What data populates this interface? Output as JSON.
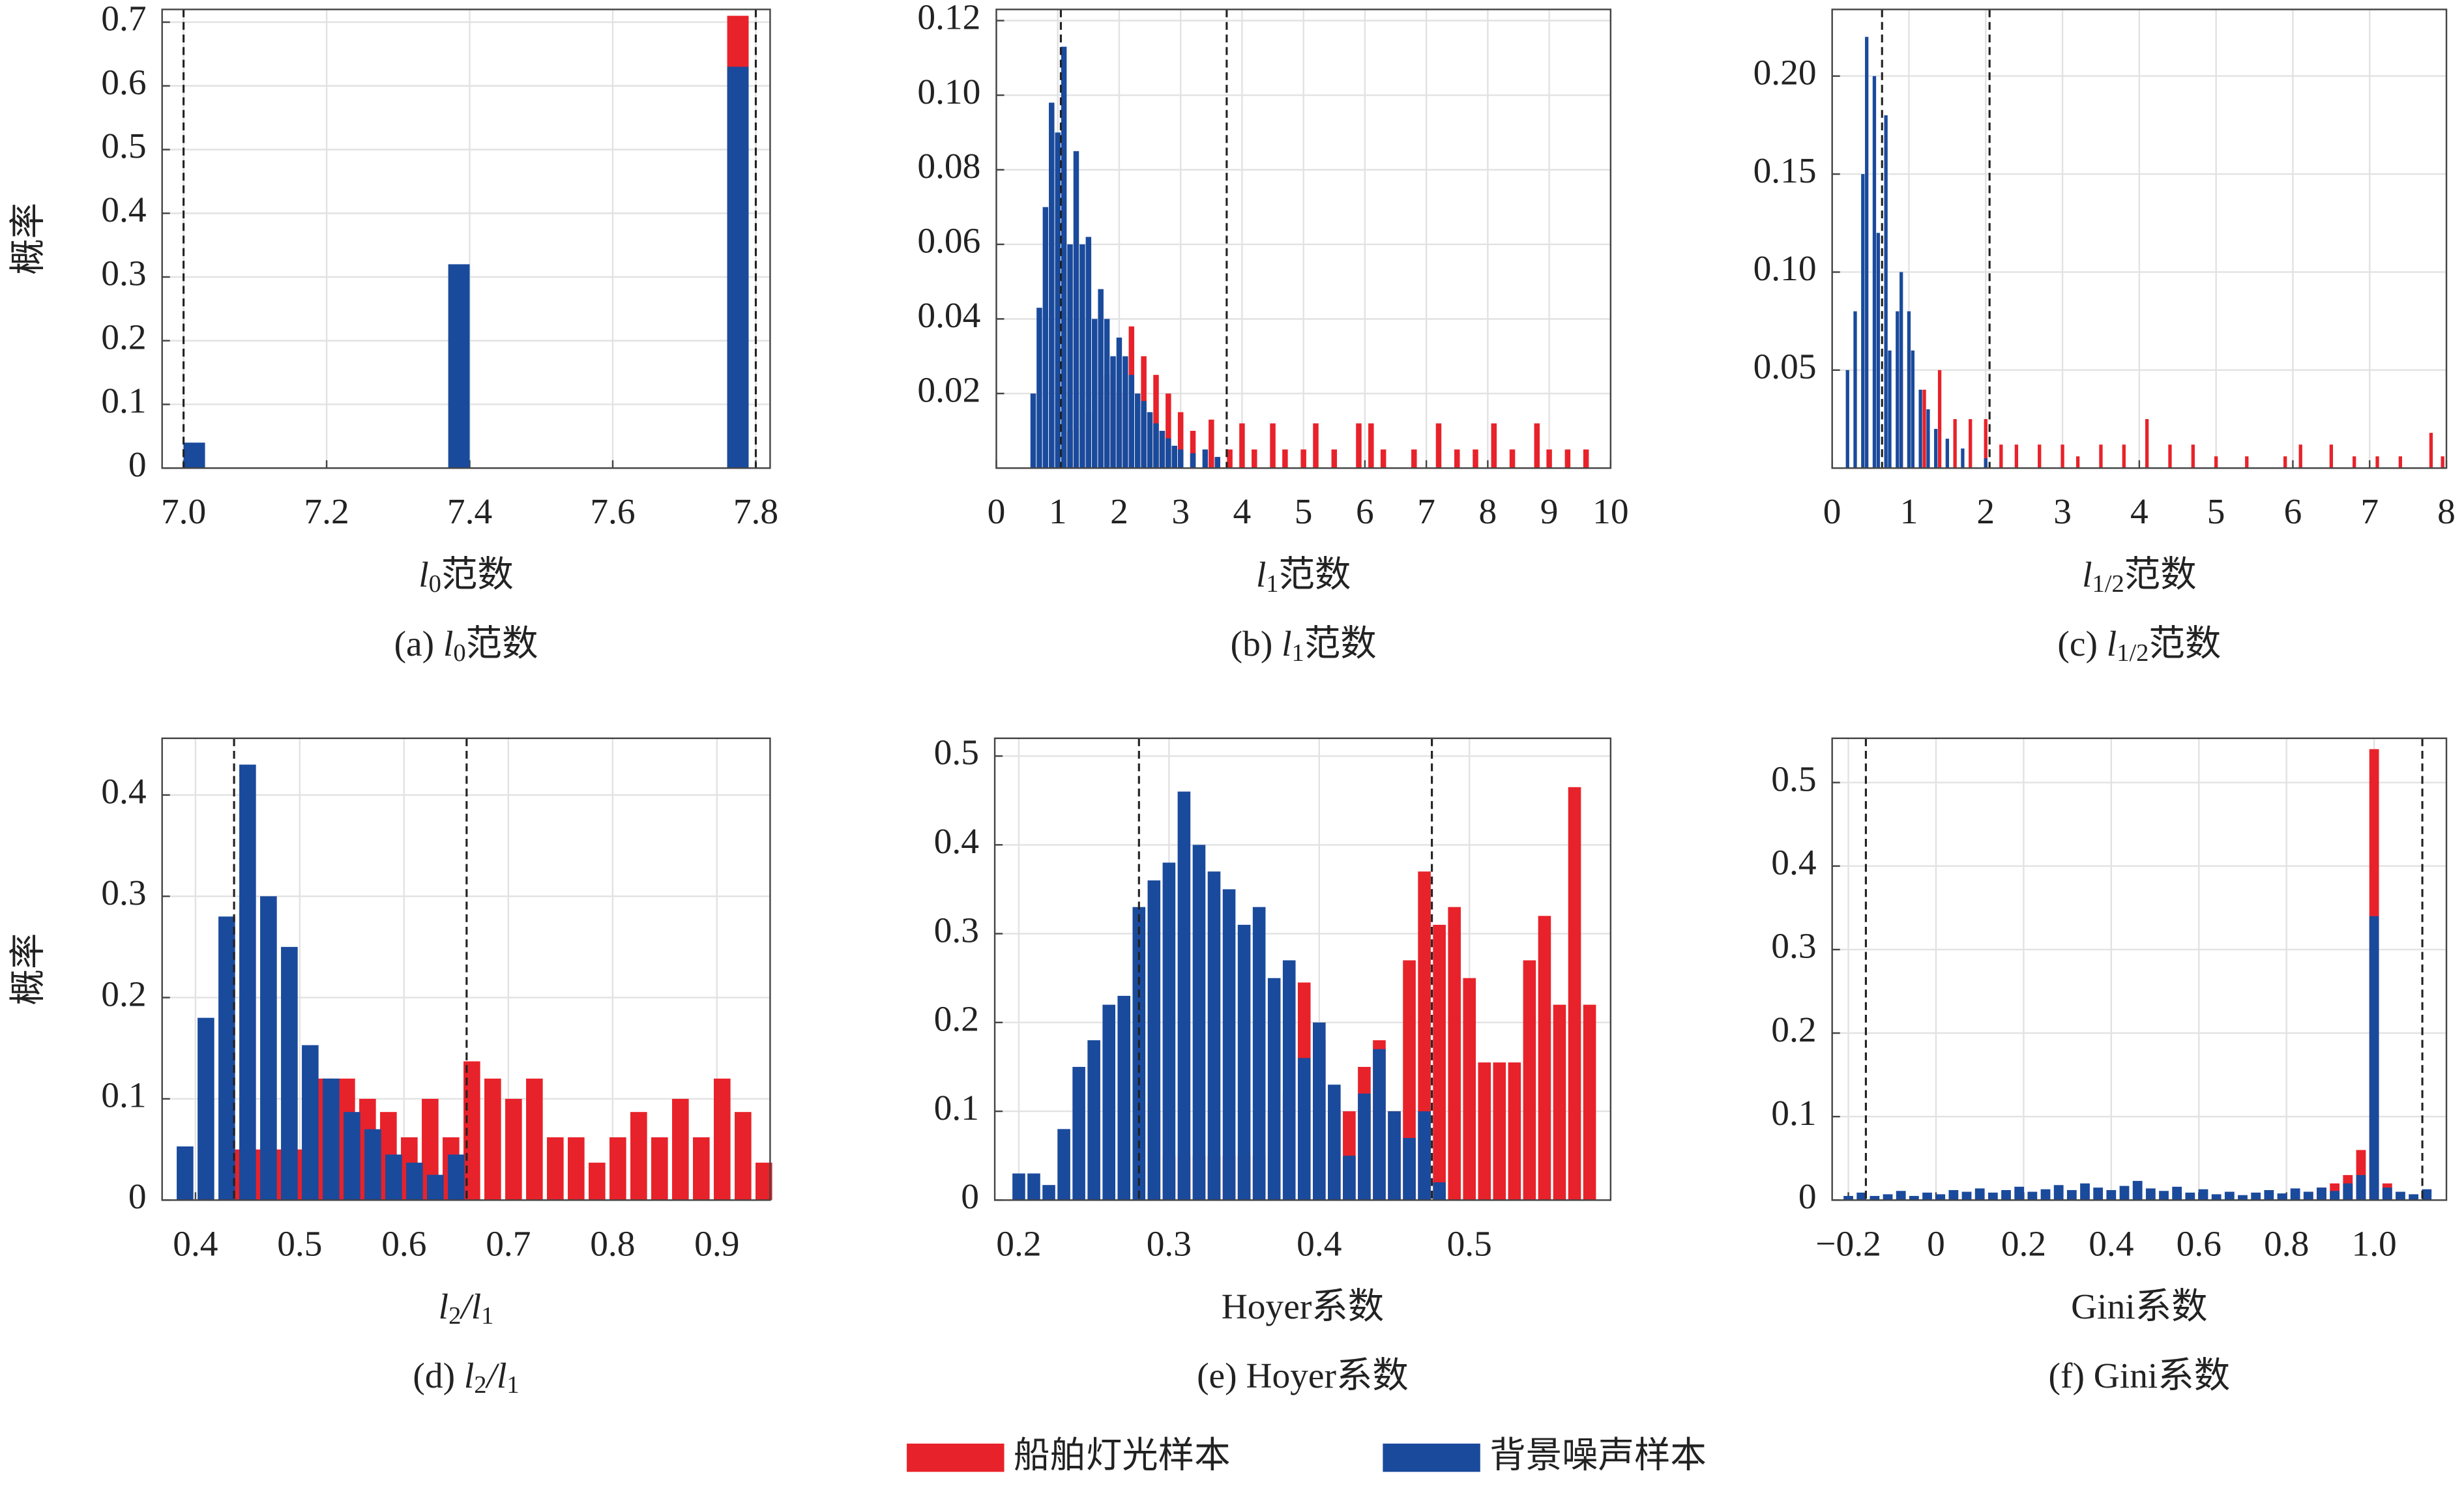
{
  "chart_data": [
    {
      "type": "bar",
      "xlabel": [
        {
          "text": "l"
        },
        {
          "text": "0",
          "sub": true
        },
        {
          "text": "范数"
        }
      ],
      "caption": [
        {
          "text": "(a) "
        },
        {
          "text": "l"
        },
        {
          "text": "0",
          "sub": true
        },
        {
          "text": "范数"
        }
      ],
      "ylabel": "概率",
      "xlim": [
        6.97,
        7.82
      ],
      "ylim": [
        0,
        0.72
      ],
      "xticks": [
        {
          "value": 7.0,
          "label": "7.0"
        },
        7.2,
        7.4,
        7.6,
        7.8
      ],
      "yticks": [
        0,
        0.1,
        0.2,
        0.3,
        0.4,
        0.5,
        0.6,
        0.7
      ],
      "vlines": [
        7.0,
        7.8
      ],
      "bar_width": 0.03,
      "grid": true,
      "series": [
        {
          "color": "#e8222a",
          "x": [
            7.775
          ],
          "values": [
            0.71
          ]
        },
        {
          "color": "#1a4a9c",
          "x": [
            7.015,
            7.385,
            7.775
          ],
          "values": [
            0.04,
            0.32,
            0.63
          ]
        }
      ]
    },
    {
      "type": "bar",
      "xlabel": [
        {
          "text": "l"
        },
        {
          "text": "1",
          "sub": true
        },
        {
          "text": "范数"
        }
      ],
      "caption": [
        {
          "text": "(b) "
        },
        {
          "text": "l"
        },
        {
          "text": "1",
          "sub": true
        },
        {
          "text": "范数"
        }
      ],
      "xlim": [
        0,
        10
      ],
      "ylim": [
        0,
        0.123
      ],
      "xticks": [
        0,
        1,
        2,
        3,
        4,
        5,
        6,
        7,
        8,
        9,
        10
      ],
      "yticks": [
        0.02,
        0.04,
        0.06,
        0.08,
        {
          "value": 0.1,
          "label": "0.10"
        },
        0.12
      ],
      "vlines": [
        1.05,
        3.75
      ],
      "bar_width": 0.09,
      "grid": true,
      "series": [
        {
          "color": "#e8222a",
          "x": [
            1.2,
            1.5,
            1.8,
            2.0,
            2.2,
            2.4,
            2.6,
            2.8,
            3.0,
            3.2,
            3.5,
            3.8,
            4.0,
            4.2,
            4.5,
            4.7,
            5.0,
            5.2,
            5.5,
            5.9,
            6.1,
            6.3,
            6.8,
            7.2,
            7.5,
            7.8,
            8.1,
            8.4,
            8.8,
            9.0,
            9.3,
            9.6
          ],
          "values": [
            0.01,
            0.015,
            0.025,
            0.02,
            0.038,
            0.03,
            0.025,
            0.02,
            0.015,
            0.01,
            0.013,
            0.005,
            0.012,
            0.005,
            0.012,
            0.005,
            0.005,
            0.012,
            0.005,
            0.012,
            0.012,
            0.005,
            0.005,
            0.012,
            0.005,
            0.005,
            0.012,
            0.005,
            0.012,
            0.005,
            0.005,
            0.005
          ]
        },
        {
          "color": "#1a4a9c",
          "x": [
            0.6,
            0.7,
            0.8,
            0.9,
            1.0,
            1.1,
            1.2,
            1.3,
            1.4,
            1.5,
            1.6,
            1.7,
            1.8,
            1.9,
            2.0,
            2.1,
            2.2,
            2.3,
            2.4,
            2.5,
            2.6,
            2.7,
            2.8,
            2.9,
            3.0,
            3.2,
            3.4,
            3.6
          ],
          "values": [
            0.02,
            0.043,
            0.07,
            0.098,
            0.09,
            0.113,
            0.06,
            0.085,
            0.06,
            0.062,
            0.04,
            0.048,
            0.04,
            0.03,
            0.035,
            0.03,
            0.025,
            0.02,
            0.018,
            0.015,
            0.012,
            0.01,
            0.008,
            0.006,
            0.005,
            0.004,
            0.005,
            0.003
          ]
        }
      ]
    },
    {
      "type": "bar",
      "xlabel": [
        {
          "text": "l"
        },
        {
          "text": "1/2",
          "sub": true
        },
        {
          "text": "范数"
        }
      ],
      "caption": [
        {
          "text": "(c) "
        },
        {
          "text": "l"
        },
        {
          "text": "1/2",
          "sub": true
        },
        {
          "text": "范数"
        }
      ],
      "xlim": [
        0,
        8
      ],
      "ylim": [
        0,
        0.234
      ],
      "xticks": [
        0,
        1,
        2,
        3,
        4,
        5,
        6,
        7,
        8
      ],
      "yticks": [
        0.05,
        {
          "value": 0.1,
          "label": "0.10"
        },
        0.15,
        {
          "value": 0.2,
          "label": "0.20"
        }
      ],
      "vlines": [
        0.65,
        2.05
      ],
      "bar_width": 0.045,
      "grid": true,
      "series": [
        {
          "color": "#e8222a",
          "x": [
            0.9,
            1.2,
            1.4,
            1.6,
            1.8,
            2.0,
            2.2,
            2.4,
            2.7,
            3.0,
            3.2,
            3.5,
            3.8,
            4.1,
            4.4,
            4.7,
            5.0,
            5.4,
            5.9,
            6.1,
            6.5,
            6.8,
            7.1,
            7.4,
            7.8,
            7.95
          ],
          "values": [
            0.05,
            0.04,
            0.05,
            0.025,
            0.025,
            0.025,
            0.012,
            0.012,
            0.012,
            0.012,
            0.006,
            0.012,
            0.012,
            0.025,
            0.012,
            0.012,
            0.006,
            0.006,
            0.006,
            0.012,
            0.012,
            0.006,
            0.006,
            0.006,
            0.018,
            0.006
          ]
        },
        {
          "color": "#1a4a9c",
          "x": [
            0.2,
            0.3,
            0.4,
            0.45,
            0.55,
            0.6,
            0.7,
            0.75,
            0.85,
            0.9,
            1.0,
            1.05,
            1.15,
            1.25,
            1.35,
            1.5,
            1.7,
            2.0
          ],
          "values": [
            0.05,
            0.08,
            0.15,
            0.22,
            0.2,
            0.12,
            0.18,
            0.06,
            0.08,
            0.1,
            0.08,
            0.06,
            0.04,
            0.03,
            0.02,
            0.015,
            0.01,
            0.005
          ]
        }
      ]
    },
    {
      "type": "bar",
      "xlabel": [
        {
          "text": "l"
        },
        {
          "text": "2",
          "sub": true
        },
        {
          "text": "/l"
        },
        {
          "text": "1",
          "sub": true
        }
      ],
      "caption": [
        {
          "text": "(d) "
        },
        {
          "text": "l"
        },
        {
          "text": "2",
          "sub": true
        },
        {
          "text": "/l"
        },
        {
          "text": "1",
          "sub": true
        }
      ],
      "ylabel": "概率",
      "xlim": [
        0.368,
        0.951
      ],
      "ylim": [
        0,
        0.456
      ],
      "xticks": [
        0.4,
        0.5,
        0.6,
        0.7,
        0.8,
        0.9
      ],
      "yticks": [
        0,
        0.1,
        0.2,
        0.3,
        0.4
      ],
      "vlines": [
        0.437,
        0.66
      ],
      "bar_width": 0.016,
      "grid": true,
      "series": [
        {
          "color": "#e8222a",
          "x": [
            0.445,
            0.465,
            0.485,
            0.505,
            0.525,
            0.545,
            0.565,
            0.585,
            0.605,
            0.625,
            0.645,
            0.665,
            0.685,
            0.705,
            0.725,
            0.745,
            0.765,
            0.785,
            0.805,
            0.825,
            0.845,
            0.865,
            0.885,
            0.905,
            0.925,
            0.945
          ],
          "values": [
            0.05,
            0.05,
            0.05,
            0.05,
            0.12,
            0.12,
            0.1,
            0.087,
            0.062,
            0.1,
            0.062,
            0.137,
            0.12,
            0.1,
            0.12,
            0.062,
            0.062,
            0.037,
            0.062,
            0.087,
            0.062,
            0.1,
            0.062,
            0.12,
            0.087,
            0.037
          ]
        },
        {
          "color": "#1a4a9c",
          "x": [
            0.39,
            0.41,
            0.43,
            0.45,
            0.47,
            0.49,
            0.51,
            0.53,
            0.55,
            0.57,
            0.59,
            0.61,
            0.63,
            0.65
          ],
          "values": [
            0.053,
            0.18,
            0.28,
            0.43,
            0.3,
            0.25,
            0.153,
            0.12,
            0.087,
            0.07,
            0.045,
            0.037,
            0.025,
            0.045
          ]
        }
      ]
    },
    {
      "type": "bar",
      "xlabel": [
        {
          "text": "Hoyer系数"
        }
      ],
      "caption": [
        {
          "text": "(e) Hoyer系数"
        }
      ],
      "xlim": [
        0.184,
        0.594
      ],
      "ylim": [
        0,
        0.52
      ],
      "xticks": [
        0.2,
        0.3,
        0.4,
        0.5
      ],
      "yticks": [
        0,
        0.1,
        0.2,
        0.3,
        0.4,
        0.5
      ],
      "vlines": [
        0.28,
        0.475
      ],
      "bar_width": 0.0085,
      "grid": true,
      "series": [
        {
          "color": "#e8222a",
          "x": [
            0.29,
            0.3,
            0.31,
            0.32,
            0.33,
            0.34,
            0.35,
            0.36,
            0.37,
            0.38,
            0.39,
            0.4,
            0.41,
            0.42,
            0.43,
            0.44,
            0.45,
            0.46,
            0.47,
            0.48,
            0.49,
            0.5,
            0.51,
            0.52,
            0.53,
            0.54,
            0.55,
            0.56,
            0.57,
            0.58
          ],
          "values": [
            0.1,
            0.05,
            0.05,
            0.05,
            0.05,
            0.05,
            0.05,
            0.05,
            0.1,
            0.12,
            0.245,
            0.18,
            0.1,
            0.1,
            0.15,
            0.18,
            0.1,
            0.27,
            0.37,
            0.31,
            0.33,
            0.25,
            0.155,
            0.155,
            0.155,
            0.27,
            0.32,
            0.22,
            0.465,
            0.22
          ]
        },
        {
          "color": "#1a4a9c",
          "x": [
            0.2,
            0.21,
            0.22,
            0.23,
            0.24,
            0.25,
            0.26,
            0.27,
            0.28,
            0.29,
            0.3,
            0.31,
            0.32,
            0.33,
            0.34,
            0.35,
            0.36,
            0.37,
            0.38,
            0.39,
            0.4,
            0.41,
            0.42,
            0.43,
            0.44,
            0.45,
            0.46,
            0.47,
            0.48
          ],
          "values": [
            0.03,
            0.03,
            0.017,
            0.08,
            0.15,
            0.18,
            0.22,
            0.23,
            0.33,
            0.36,
            0.38,
            0.46,
            0.4,
            0.37,
            0.35,
            0.31,
            0.33,
            0.25,
            0.27,
            0.16,
            0.2,
            0.13,
            0.05,
            0.12,
            0.17,
            0.1,
            0.07,
            0.1,
            0.02
          ]
        }
      ]
    },
    {
      "type": "bar",
      "xlabel": [
        {
          "text": "Gini系数"
        }
      ],
      "caption": [
        {
          "text": "(f) Gini系数"
        }
      ],
      "xlim": [
        -0.237,
        1.165
      ],
      "ylim": [
        0,
        0.553
      ],
      "xticks": [
        {
          "value": -0.2,
          "label": "−0.2"
        },
        0,
        0.2,
        0.4,
        0.6,
        0.8,
        {
          "value": 1.0,
          "label": "1.0"
        }
      ],
      "yticks": [
        0,
        0.1,
        0.2,
        0.3,
        0.4,
        0.5
      ],
      "vlines": [
        -0.16,
        1.11
      ],
      "bar_width": 0.022,
      "grid": true,
      "series": [
        {
          "color": "#e8222a",
          "x": [
            0.85,
            0.88,
            0.91,
            0.94,
            0.97,
            1.0,
            1.03
          ],
          "values": [
            0.01,
            0.015,
            0.02,
            0.03,
            0.06,
            0.54,
            0.02
          ]
        },
        {
          "color": "#1a4a9c",
          "x": [
            -0.2,
            -0.17,
            -0.14,
            -0.11,
            -0.08,
            -0.05,
            -0.02,
            0.01,
            0.04,
            0.07,
            0.1,
            0.13,
            0.16,
            0.19,
            0.22,
            0.25,
            0.28,
            0.31,
            0.34,
            0.37,
            0.4,
            0.43,
            0.46,
            0.49,
            0.52,
            0.55,
            0.58,
            0.61,
            0.64,
            0.67,
            0.7,
            0.73,
            0.76,
            0.79,
            0.82,
            0.85,
            0.88,
            0.91,
            0.94,
            0.97,
            1.0,
            1.03,
            1.06,
            1.09,
            1.12
          ],
          "values": [
            0.005,
            0.009,
            0.005,
            0.007,
            0.011,
            0.005,
            0.009,
            0.007,
            0.012,
            0.01,
            0.014,
            0.009,
            0.012,
            0.016,
            0.01,
            0.013,
            0.018,
            0.012,
            0.02,
            0.015,
            0.012,
            0.017,
            0.023,
            0.014,
            0.011,
            0.016,
            0.009,
            0.013,
            0.007,
            0.01,
            0.006,
            0.009,
            0.012,
            0.008,
            0.014,
            0.01,
            0.015,
            0.011,
            0.02,
            0.03,
            0.34,
            0.015,
            0.01,
            0.007,
            0.013
          ]
        }
      ]
    }
  ],
  "legend": [
    {
      "name": "船舶灯光样本",
      "color": "#e8222a"
    },
    {
      "name": "背景噪声样本",
      "color": "#1a4a9c"
    }
  ]
}
